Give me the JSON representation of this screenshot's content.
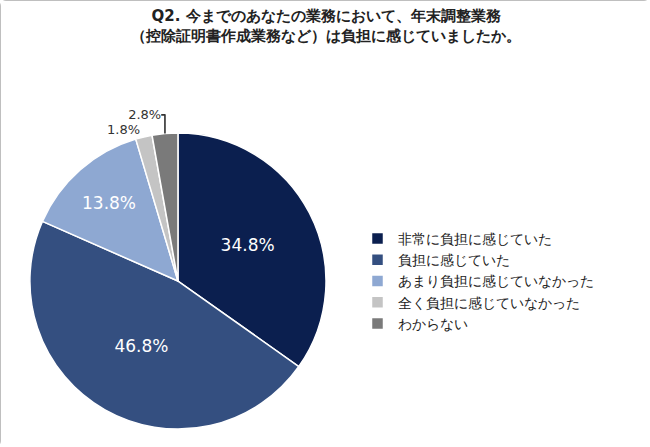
{
  "chart_data": {
    "type": "pie",
    "title": "Q2. 今までのあなたの業務において、年末調整業務\n（控除証明書作成業務など）は負担に感じていましたか。",
    "categories": [
      "非常に負担に感じていた",
      "負担に感じていた",
      "あまり負担に感じていなかった",
      "全く負担に感じていなかった",
      "わからない"
    ],
    "values": [
      34.8,
      46.8,
      13.8,
      1.8,
      2.8
    ],
    "value_labels": [
      "34.8%",
      "46.8%",
      "13.8%",
      "1.8%",
      "2.8%"
    ],
    "colors": [
      "#0b1f4f",
      "#344f80",
      "#8ea8d2",
      "#c4c4c4",
      "#7a7a7a"
    ],
    "data_labels": true,
    "legend": "right"
  }
}
